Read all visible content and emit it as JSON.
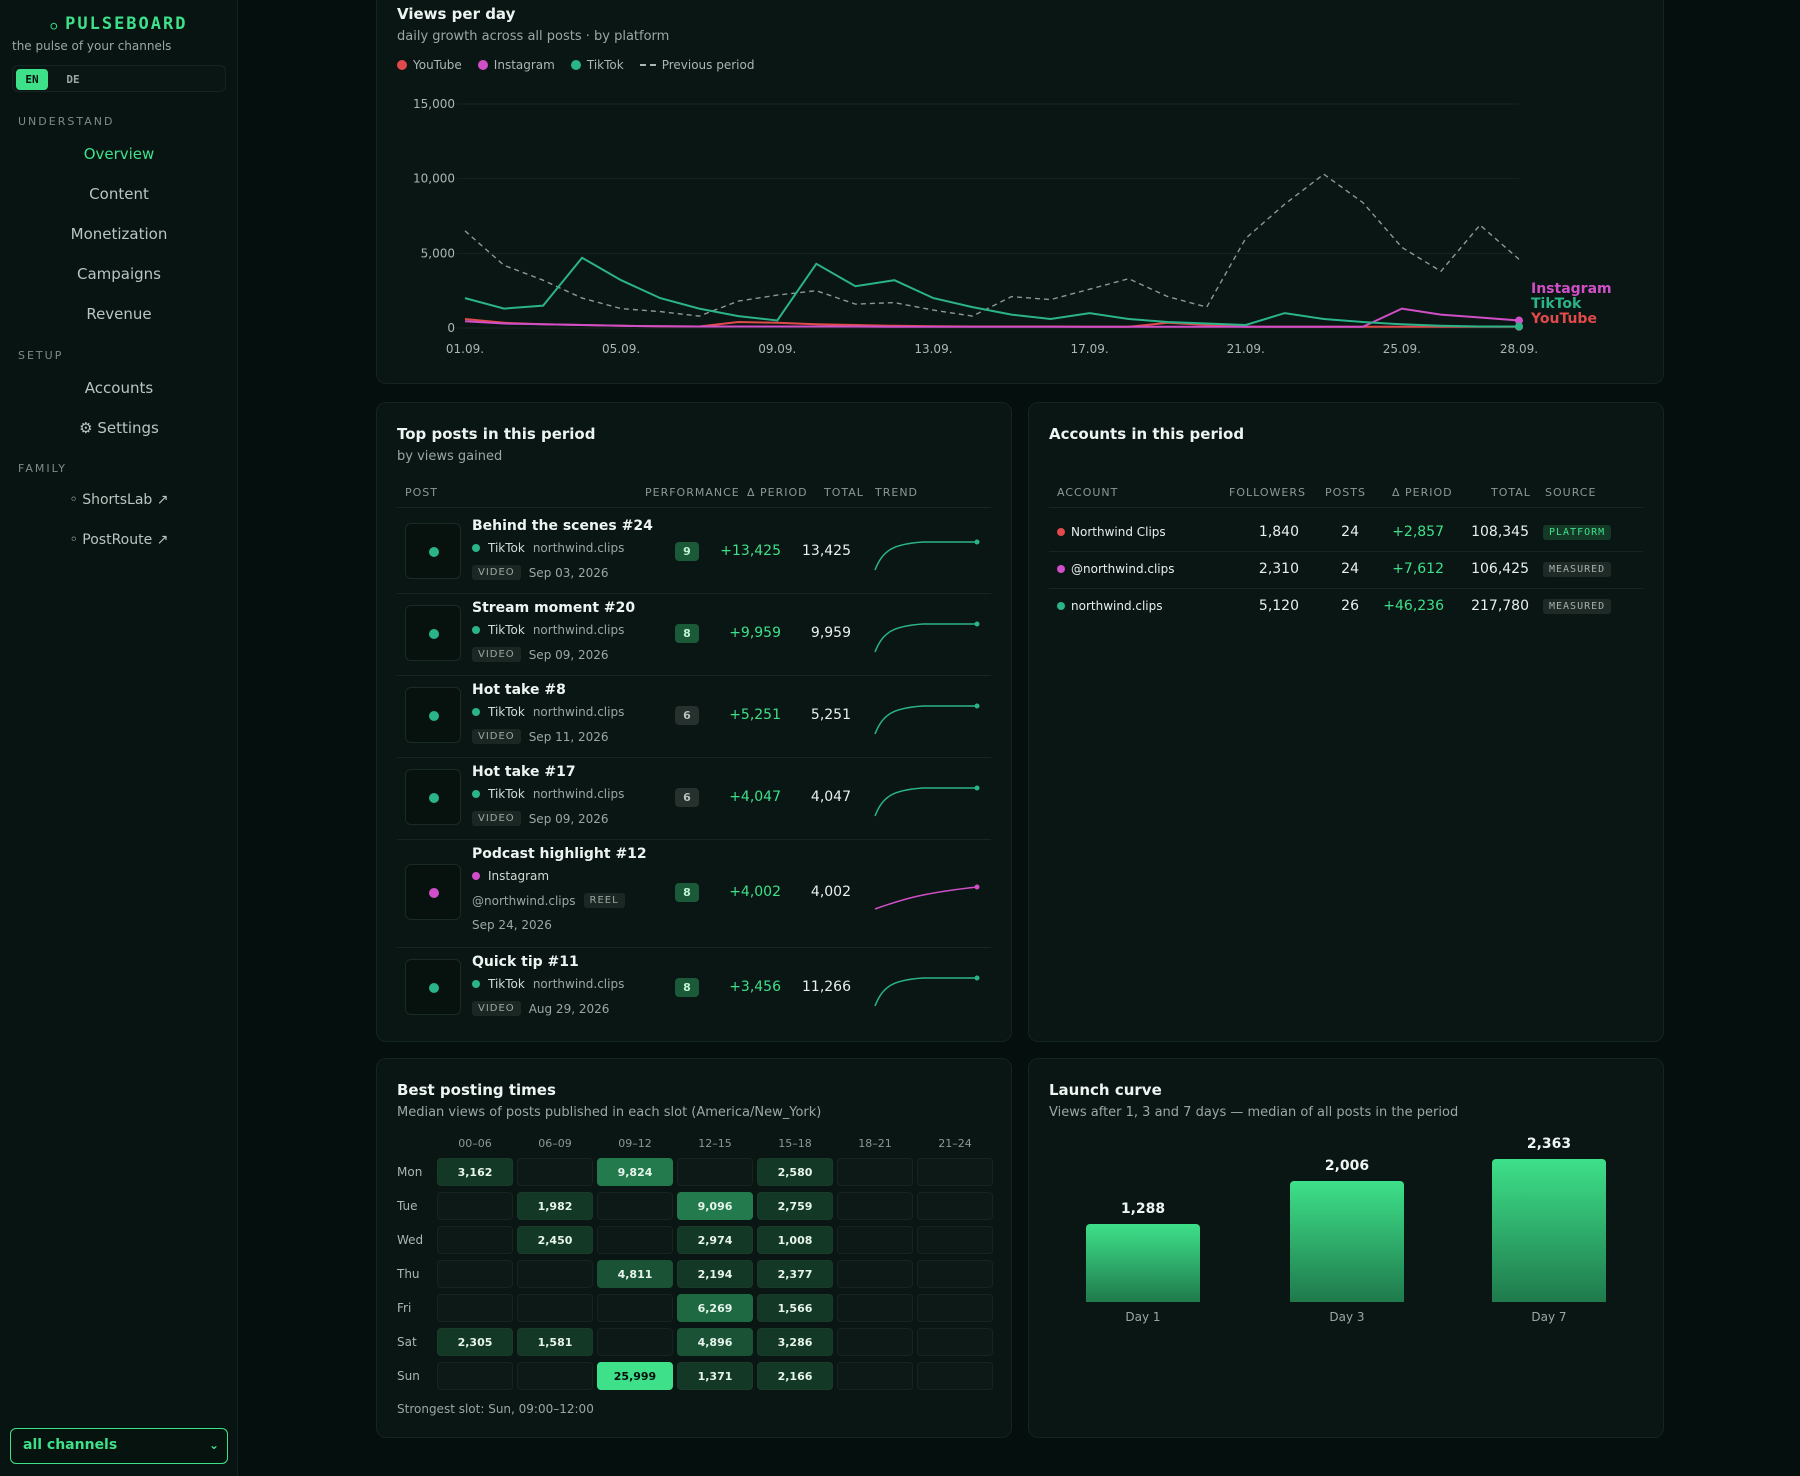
{
  "brand": {
    "name": "PULSEBOARD",
    "tagline": "the pulse of your channels"
  },
  "lang": {
    "en": "EN",
    "de": "DE"
  },
  "nav": {
    "understand_label": "UNDERSTAND",
    "understand": [
      "Overview",
      "Content",
      "Monetization",
      "Campaigns",
      "Revenue"
    ],
    "setup_label": "SETUP",
    "setup": [
      "Accounts",
      "⚙ Settings"
    ],
    "family_label": "FAMILY",
    "family": [
      "◦ ShortsLab ↗",
      "◦ PostRoute ↗"
    ]
  },
  "channel_select": {
    "value": "all channels"
  },
  "colors": {
    "youtube": "#e04a4a",
    "instagram": "#d04fc8",
    "tiktok": "#2bb38a",
    "accent": "#3ee08a"
  },
  "views_chart": {
    "title": "Views per day",
    "subtitle": "daily growth across all posts · by platform",
    "legend": {
      "youtube": "YouTube",
      "instagram": "Instagram",
      "tiktok": "TikTok",
      "previous": "Previous period"
    },
    "end_labels": {
      "instagram": "Instagram",
      "tiktok": "TikTok",
      "youtube": "YouTube"
    }
  },
  "chart_data": {
    "type": "line",
    "title": "Views per day",
    "ylim": [
      0,
      15000
    ],
    "yticks": [
      "15,000",
      "10,000",
      "5,000",
      "0"
    ],
    "xticks": [
      "01.09.",
      "05.09.",
      "09.09.",
      "13.09.",
      "17.09.",
      "21.09.",
      "25.09.",
      "28.09."
    ],
    "x": [
      "01.09.",
      "02.09.",
      "03.09.",
      "04.09.",
      "05.09.",
      "06.09.",
      "07.09.",
      "08.09.",
      "09.09.",
      "10.09.",
      "11.09.",
      "12.09.",
      "13.09.",
      "14.09.",
      "15.09.",
      "16.09.",
      "17.09.",
      "18.09.",
      "19.09.",
      "20.09.",
      "21.09.",
      "22.09.",
      "23.09.",
      "24.09.",
      "25.09.",
      "26.09.",
      "27.09.",
      "28.09."
    ],
    "grid": true,
    "series": [
      {
        "name": "YouTube",
        "values": [
          600,
          350,
          250,
          200,
          150,
          120,
          100,
          400,
          350,
          250,
          200,
          150,
          120,
          100,
          100,
          100,
          80,
          80,
          350,
          200,
          80,
          80,
          80,
          80,
          80,
          80,
          80,
          80
        ]
      },
      {
        "name": "Instagram",
        "values": [
          450,
          300,
          250,
          200,
          150,
          120,
          100,
          100,
          100,
          100,
          100,
          80,
          80,
          80,
          80,
          80,
          80,
          80,
          80,
          80,
          80,
          80,
          80,
          80,
          1300,
          900,
          700,
          500
        ]
      },
      {
        "name": "TikTok",
        "values": [
          2000,
          1300,
          1500,
          4700,
          3200,
          2000,
          1300,
          800,
          500,
          4300,
          2800,
          3200,
          2000,
          1400,
          900,
          600,
          1000,
          600,
          400,
          300,
          200,
          1000,
          600,
          400,
          250,
          150,
          100,
          100
        ]
      },
      {
        "name": "Previous period",
        "values": [
          6500,
          4200,
          3200,
          2000,
          1300,
          1100,
          800,
          1800,
          2200,
          2500,
          1600,
          1700,
          1200,
          800,
          2100,
          1900,
          2600,
          3300,
          2100,
          1400,
          6000,
          8300,
          10300,
          8400,
          5400,
          3800,
          6900,
          4600
        ]
      }
    ]
  },
  "top_posts": {
    "title": "Top posts in this period",
    "subtitle": "by views gained",
    "headers": {
      "post": "POST",
      "performance": "PERFORMANCE",
      "delta": "Δ PERIOD",
      "total": "TOTAL",
      "trend": "TREND"
    },
    "rows": [
      {
        "title": "Behind the scenes #24",
        "platform": "TikTok",
        "handle": "northwind.clips",
        "tag": "VIDEO",
        "date": "Sep 03, 2026",
        "score": "9",
        "delta": "+13,425",
        "total": "13,425"
      },
      {
        "title": "Stream moment #20",
        "platform": "TikTok",
        "handle": "northwind.clips",
        "tag": "VIDEO",
        "date": "Sep 09, 2026",
        "score": "8",
        "delta": "+9,959",
        "total": "9,959"
      },
      {
        "title": "Hot take #8",
        "platform": "TikTok",
        "handle": "northwind.clips",
        "tag": "VIDEO",
        "date": "Sep 11, 2026",
        "score": "6",
        "delta": "+5,251",
        "total": "5,251"
      },
      {
        "title": "Hot take #17",
        "platform": "TikTok",
        "handle": "northwind.clips",
        "tag": "VIDEO",
        "date": "Sep 09, 2026",
        "score": "6",
        "delta": "+4,047",
        "total": "4,047"
      },
      {
        "title": "Podcast highlight #12",
        "platform": "Instagram",
        "handle": "@northwind.clips",
        "tag": "REEL",
        "date": "Sep 24, 2026",
        "score": "8",
        "delta": "+4,002",
        "total": "4,002"
      },
      {
        "title": "Quick tip #11",
        "platform": "TikTok",
        "handle": "northwind.clips",
        "tag": "VIDEO",
        "date": "Aug 29, 2026",
        "score": "8",
        "delta": "+3,456",
        "total": "11,266"
      }
    ]
  },
  "accounts": {
    "title": "Accounts in this period",
    "headers": {
      "account": "ACCOUNT",
      "followers": "FOLLOWERS",
      "posts": "POSTS",
      "delta": "Δ PERIOD",
      "total": "TOTAL",
      "source": "SOURCE"
    },
    "rows": [
      {
        "name": "Northwind Clips",
        "platform": "youtube",
        "followers": "1,840",
        "posts": "24",
        "delta": "+2,857",
        "total": "108,345",
        "source": "PLATFORM"
      },
      {
        "name": "@northwind.clips",
        "platform": "instagram",
        "followers": "2,310",
        "posts": "24",
        "delta": "+7,612",
        "total": "106,425",
        "source": "MEASURED"
      },
      {
        "name": "northwind.clips",
        "platform": "tiktok",
        "followers": "5,120",
        "posts": "26",
        "delta": "+46,236",
        "total": "217,780",
        "source": "MEASURED"
      }
    ]
  },
  "posting_times": {
    "title": "Best posting times",
    "subtitle": "Median views of posts published in each slot (America/New_York)",
    "cols": [
      "00–06",
      "06–09",
      "09–12",
      "12–15",
      "15–18",
      "18–21",
      "21–24"
    ],
    "rows": [
      "Mon",
      "Tue",
      "Wed",
      "Thu",
      "Fri",
      "Sat",
      "Sun"
    ],
    "cells": [
      [
        "3,162",
        "",
        "9,824",
        "",
        "2,580",
        "",
        ""
      ],
      [
        "",
        "1,982",
        "",
        "9,096",
        "2,759",
        "",
        ""
      ],
      [
        "",
        "2,450",
        "",
        "2,974",
        "1,008",
        "",
        ""
      ],
      [
        "",
        "",
        "4,811",
        "2,194",
        "2,377",
        "",
        ""
      ],
      [
        "",
        "",
        "",
        "6,269",
        "1,566",
        "",
        ""
      ],
      [
        "2,305",
        "1,581",
        "",
        "4,896",
        "3,286",
        "",
        ""
      ],
      [
        "",
        "",
        "25,999",
        "1,371",
        "2,166",
        "",
        ""
      ]
    ],
    "footer": "Strongest slot: Sun, 09:00–12:00"
  },
  "launch_curve": {
    "title": "Launch curve",
    "subtitle": "Views after 1, 3 and 7 days — median of all posts in the period",
    "bars": [
      {
        "label": "Day 1",
        "value": "1,288",
        "num": 1288
      },
      {
        "label": "Day 3",
        "value": "2,006",
        "num": 2006
      },
      {
        "label": "Day 7",
        "value": "2,363",
        "num": 2363
      }
    ]
  }
}
